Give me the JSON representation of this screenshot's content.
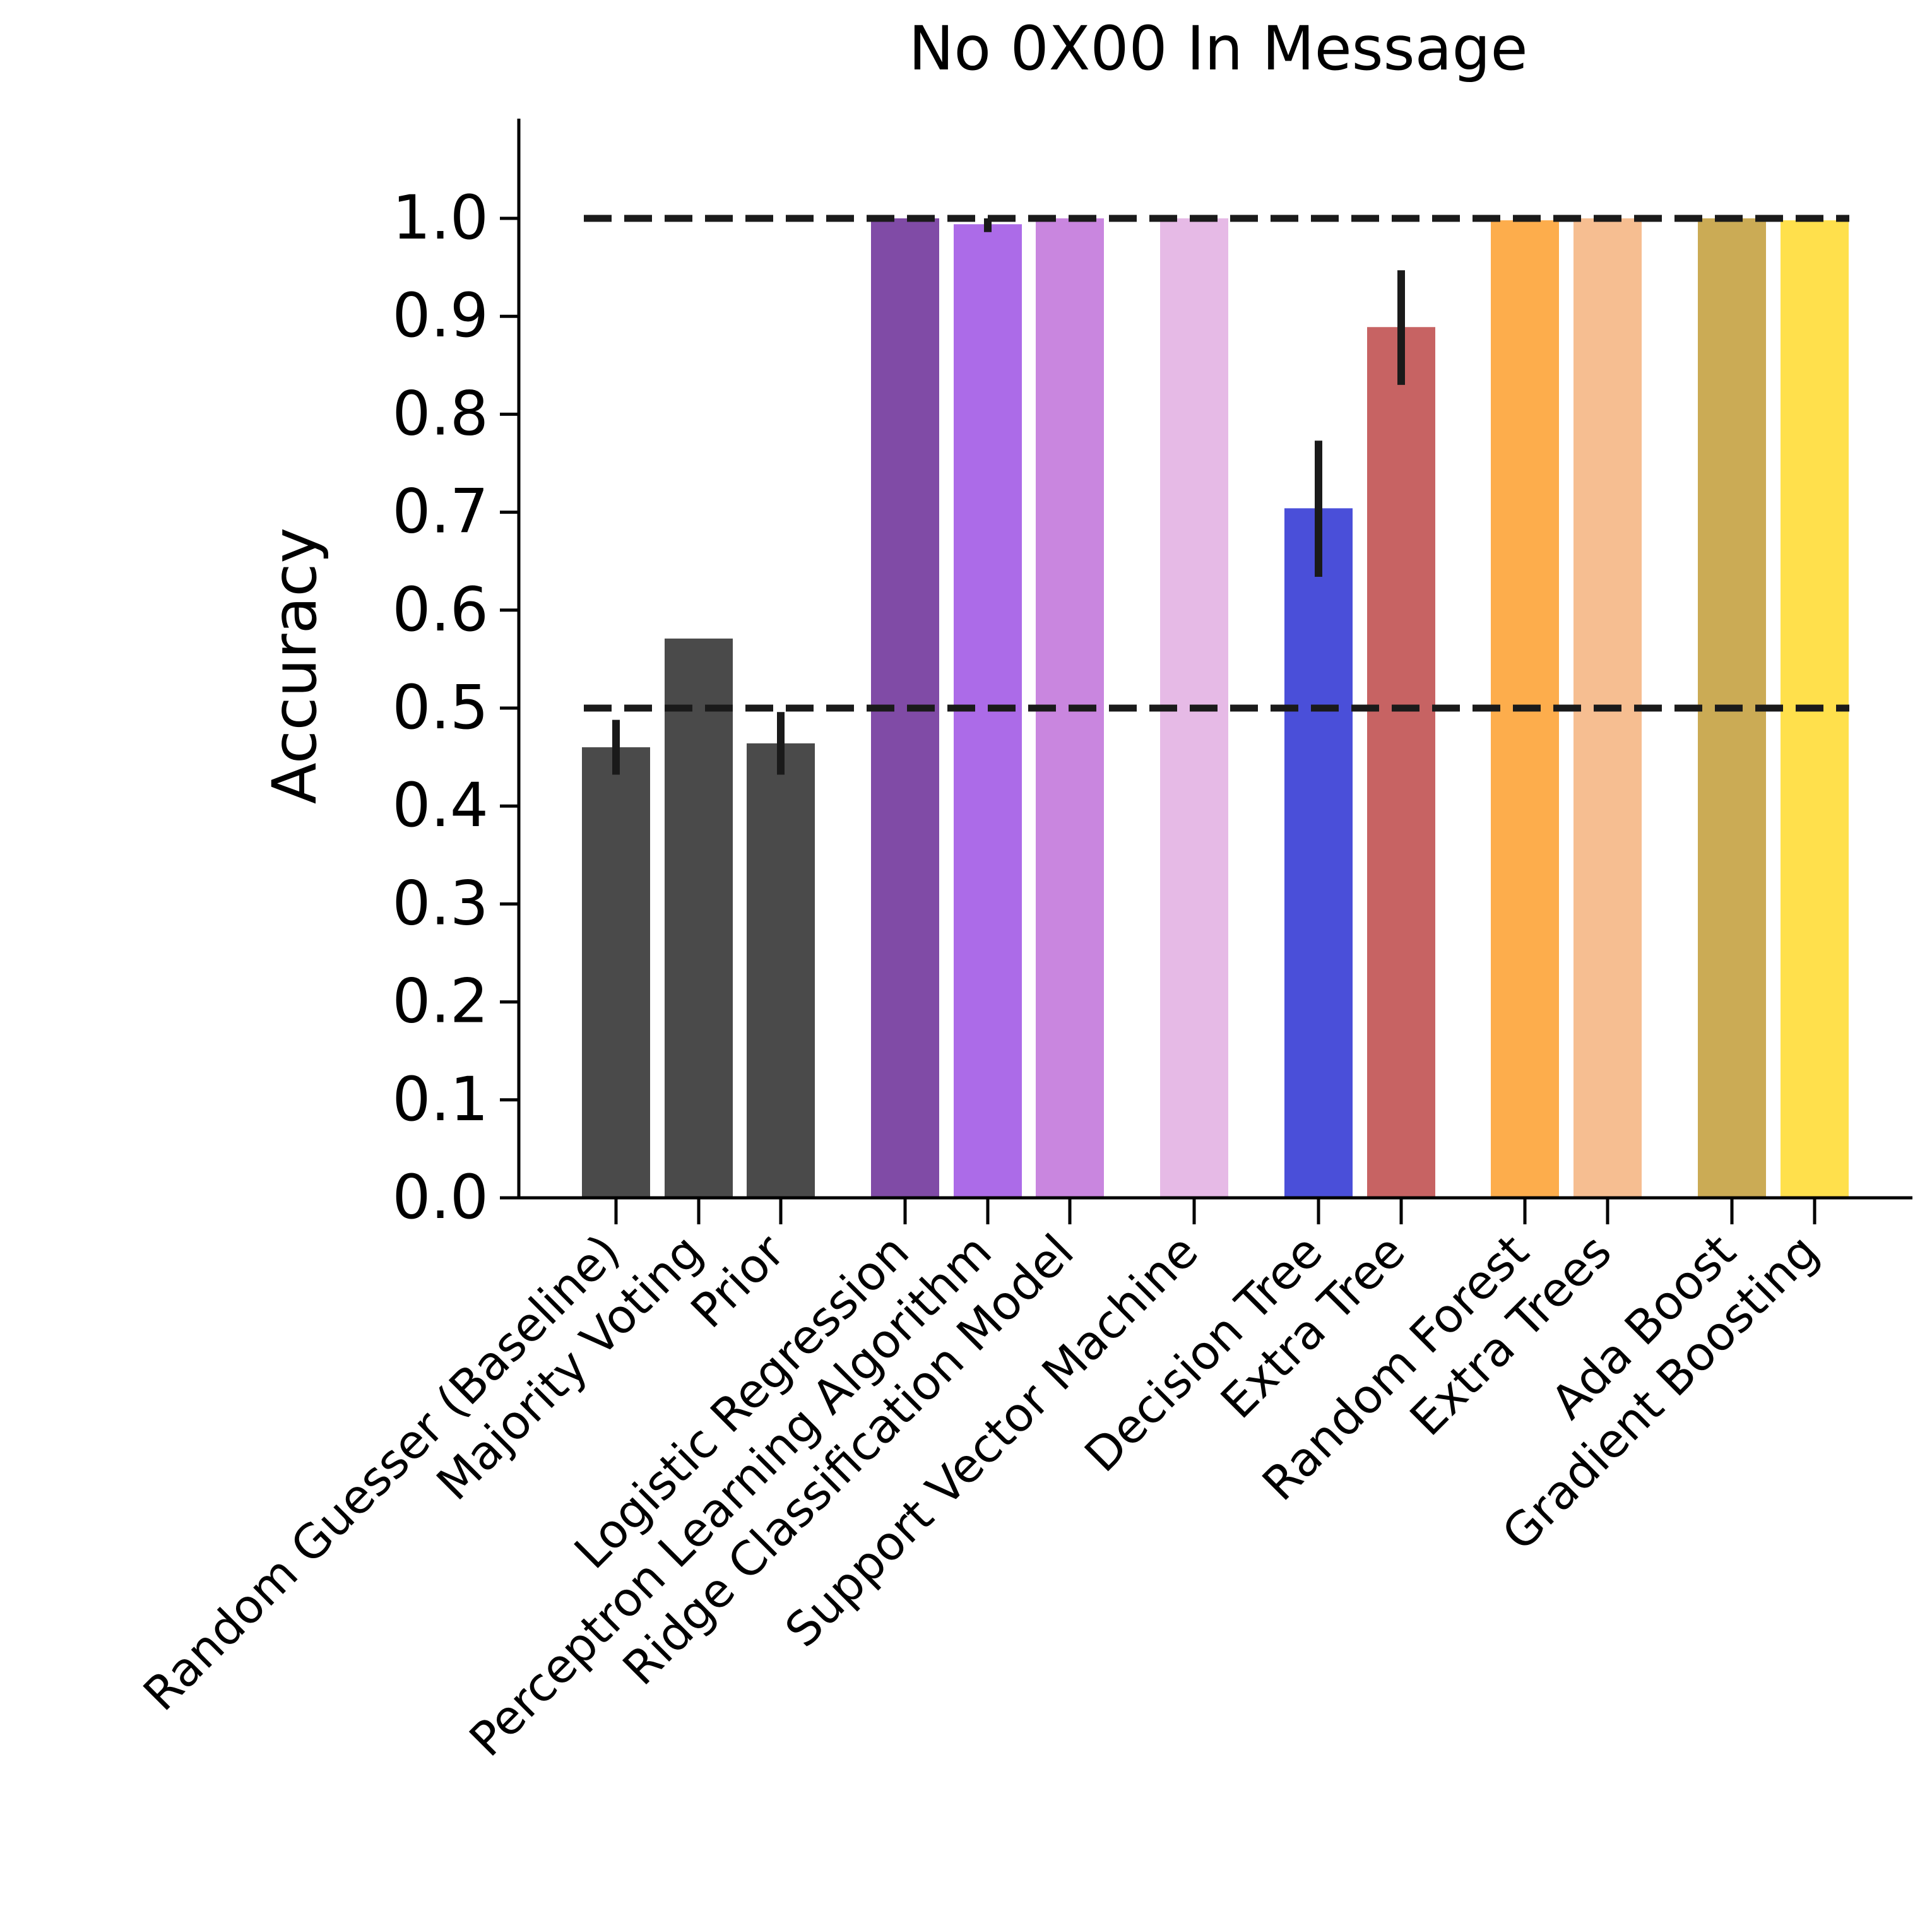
{
  "chart_data": {
    "type": "bar",
    "title": "No 0X00 In Message",
    "xlabel": "",
    "ylabel": "Accuracy",
    "ylim": [
      0,
      1.1
    ],
    "yticks": [
      "0.0",
      "0.1",
      "0.2",
      "0.3",
      "0.4",
      "0.5",
      "0.6",
      "0.7",
      "0.8",
      "0.9",
      "1.0"
    ],
    "reference_lines": [
      0.5,
      1.0
    ],
    "grid": false,
    "categories": [
      "Random Guesser (Baseline)",
      "Majority Voting",
      "Prior",
      "Logistic Regression",
      "Perceptron Learning Algorithm",
      "Ridge Classification Model",
      "Support Vector Machine",
      "Decision Tree",
      "Extra Tree",
      "Random Forest",
      "Extra Trees",
      "Ada Boost",
      "Gradient Boosting"
    ],
    "values": [
      0.46,
      0.571,
      0.464,
      1.0,
      0.994,
      1.0,
      1.0,
      0.704,
      0.889,
      0.998,
      1.0,
      1.0,
      0.998
    ],
    "error_low": [
      0.432,
      null,
      0.432,
      null,
      0.986,
      null,
      null,
      0.634,
      0.83,
      null,
      null,
      null,
      null
    ],
    "error_high": [
      0.488,
      null,
      0.496,
      null,
      1.0,
      null,
      null,
      0.773,
      0.947,
      null,
      null,
      null,
      null
    ],
    "colors": [
      "#4a4a4a",
      "#4a4a4a",
      "#4a4a4a",
      "#804ba6",
      "#ac6be8",
      "#c986df",
      "#e6bae6",
      "#4a4fd9",
      "#c76363",
      "#fdad4c",
      "#f6be91",
      "#cbab55",
      "#ffe04c"
    ]
  }
}
